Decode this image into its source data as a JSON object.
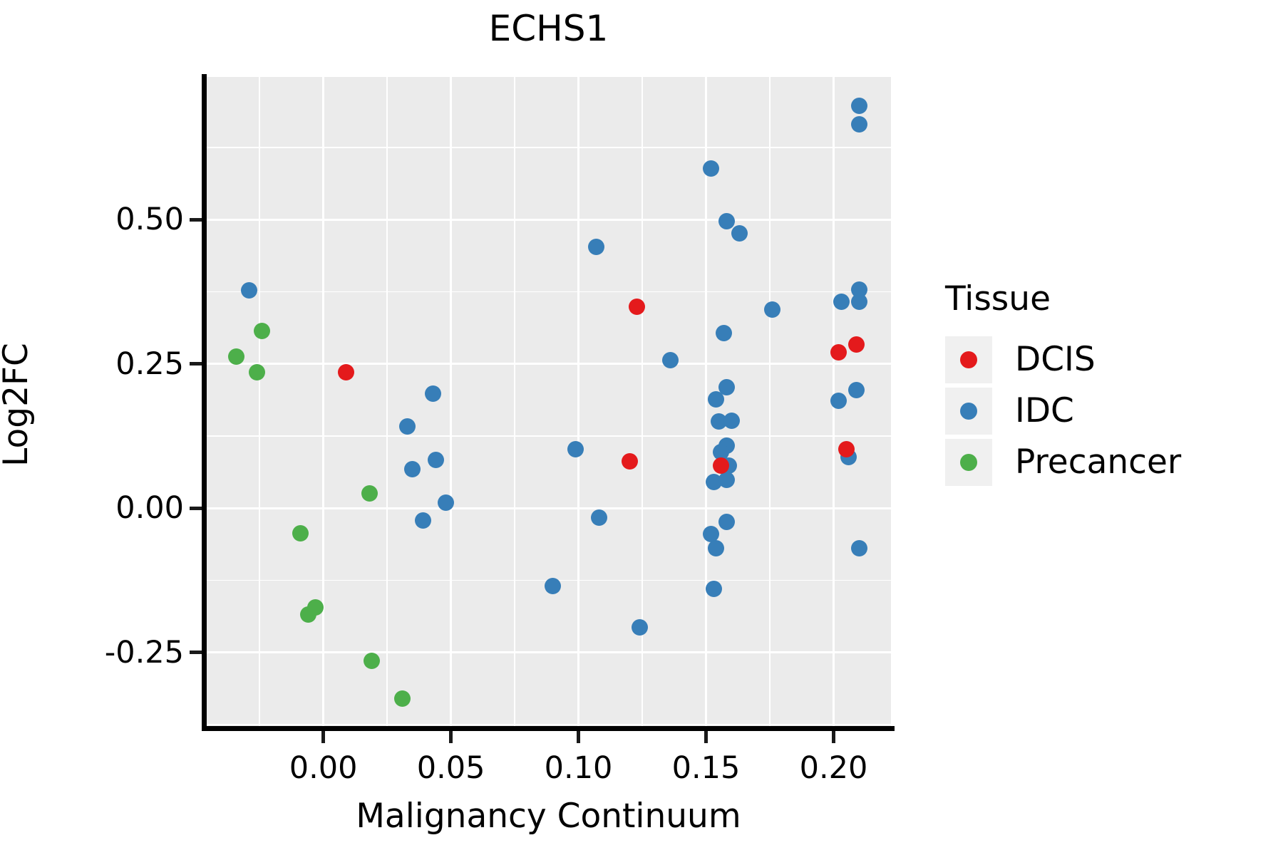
{
  "title": "ECHS1",
  "axes": {
    "x": {
      "label": "Malignancy Continuum"
    },
    "y": {
      "label": "Log2FC"
    }
  },
  "legend": {
    "title": "Tissue",
    "items": [
      {
        "label": "DCIS",
        "color": "#E41A1C"
      },
      {
        "label": "IDC",
        "color": "#377EB8"
      },
      {
        "label": "Precancer",
        "color": "#4DAF4A"
      }
    ]
  },
  "colors": {
    "panel_background": "#EBEBEB",
    "gridline": "#FFFFFF",
    "axis": "#000000",
    "legend_key_background": "#F0F0F0",
    "dcis": "#E41A1C",
    "idc": "#377EB8",
    "precancer": "#4DAF4A"
  },
  "chart_data": {
    "type": "scatter",
    "title": "ECHS1",
    "xlabel": "Malignancy Continuum",
    "ylabel": "Log2FC",
    "xlim": [
      -0.046,
      0.2225
    ],
    "ylim": [
      -0.38,
      0.747
    ],
    "grid": true,
    "legend_position": "right",
    "x_major_ticks": [
      0.0,
      0.05,
      0.1,
      0.15,
      0.2
    ],
    "x_tick_labels": [
      "0.00",
      "0.05",
      "0.10",
      "0.15",
      "0.20"
    ],
    "x_minor_ticks": [
      -0.025,
      0.025,
      0.075,
      0.125,
      0.175
    ],
    "y_major_ticks": [
      -0.25,
      0.0,
      0.25,
      0.5
    ],
    "y_tick_labels": [
      "-0.25",
      "0.00",
      "0.25",
      "0.50"
    ],
    "y_minor_ticks": [
      -0.375,
      -0.125,
      0.125,
      0.375,
      0.625
    ],
    "series": [
      {
        "name": "DCIS",
        "color": "#E41A1C",
        "z": 3,
        "points": [
          [
            0.009,
            0.235
          ],
          [
            0.123,
            0.349
          ],
          [
            0.202,
            0.27
          ],
          [
            0.209,
            0.283
          ],
          [
            0.12,
            0.081
          ],
          [
            0.156,
            0.074
          ],
          [
            0.205,
            0.102
          ]
        ]
      },
      {
        "name": "IDC",
        "color": "#377EB8",
        "z": 1,
        "points": [
          [
            -0.029,
            0.377
          ],
          [
            0.043,
            0.198
          ],
          [
            0.033,
            0.142
          ],
          [
            0.044,
            0.083
          ],
          [
            0.035,
            0.068
          ],
          [
            0.048,
            0.009
          ],
          [
            0.039,
            -0.022
          ],
          [
            0.09,
            -0.135
          ],
          [
            0.21,
            0.697
          ],
          [
            0.21,
            0.665
          ],
          [
            0.152,
            0.588
          ],
          [
            0.158,
            0.497
          ],
          [
            0.163,
            0.476
          ],
          [
            0.107,
            0.453
          ],
          [
            0.21,
            0.378
          ],
          [
            0.203,
            0.358
          ],
          [
            0.21,
            0.358
          ],
          [
            0.176,
            0.344
          ],
          [
            0.157,
            0.303
          ],
          [
            0.136,
            0.256
          ],
          [
            0.158,
            0.21
          ],
          [
            0.154,
            0.188
          ],
          [
            0.209,
            0.204
          ],
          [
            0.202,
            0.186
          ],
          [
            0.155,
            0.15
          ],
          [
            0.16,
            0.151
          ],
          [
            0.158,
            0.108
          ],
          [
            0.156,
            0.097
          ],
          [
            0.159,
            0.074
          ],
          [
            0.153,
            0.045
          ],
          [
            0.158,
            0.049
          ],
          [
            0.099,
            0.102
          ],
          [
            0.206,
            0.088
          ],
          [
            0.108,
            -0.016
          ],
          [
            0.158,
            -0.024
          ],
          [
            0.152,
            -0.045
          ],
          [
            0.154,
            -0.07
          ],
          [
            0.21,
            -0.069
          ],
          [
            0.153,
            -0.14
          ],
          [
            0.124,
            -0.206
          ]
        ]
      },
      {
        "name": "Precancer",
        "color": "#4DAF4A",
        "z": 2,
        "points": [
          [
            -0.024,
            0.307
          ],
          [
            -0.034,
            0.262
          ],
          [
            -0.026,
            0.235
          ],
          [
            0.018,
            0.025
          ],
          [
            -0.009,
            -0.044
          ],
          [
            -0.006,
            -0.184
          ],
          [
            -0.003,
            -0.172
          ],
          [
            0.019,
            -0.264
          ],
          [
            0.031,
            -0.33
          ]
        ]
      }
    ]
  }
}
